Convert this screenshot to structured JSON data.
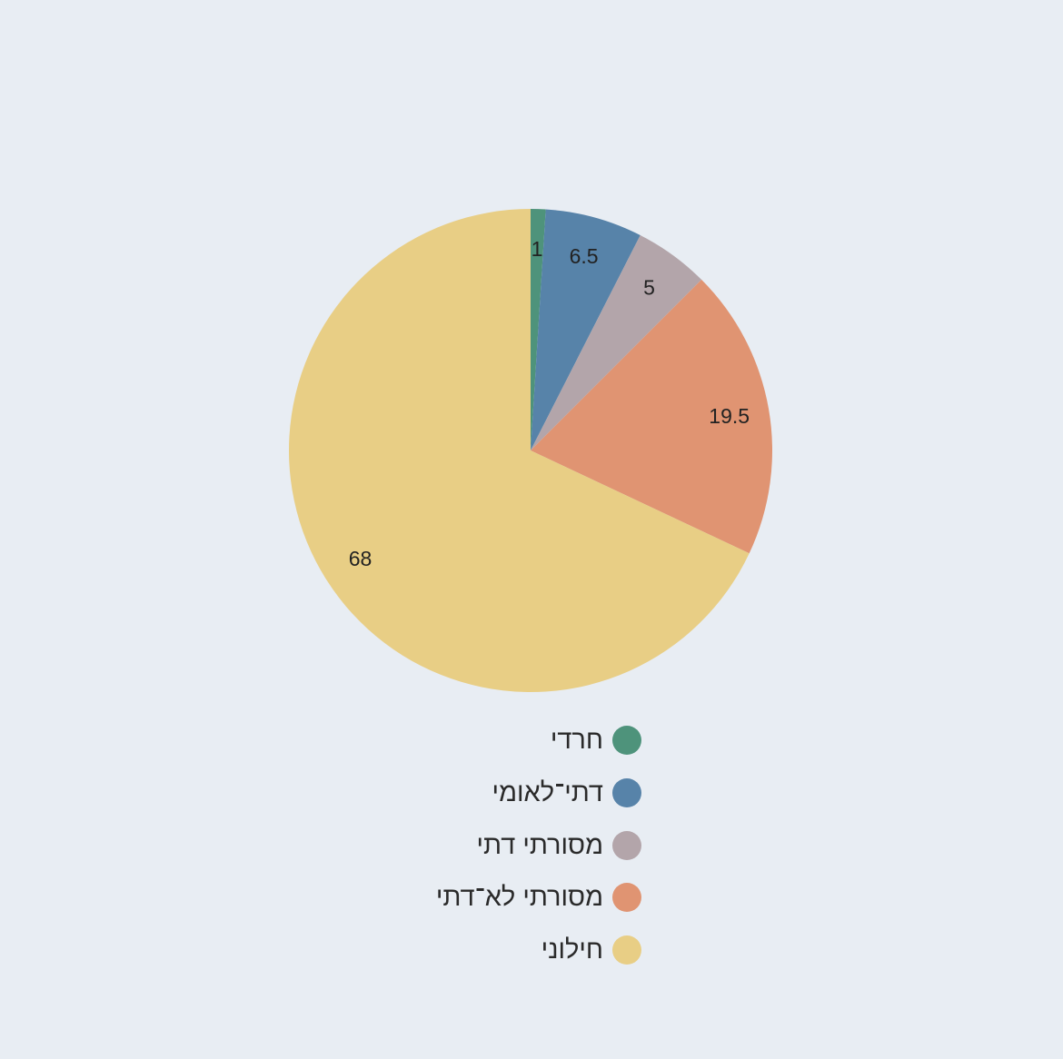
{
  "chart_data": {
    "type": "pie",
    "start_angle": "12 o'clock",
    "direction": "clockwise",
    "legend_position": "bottom-center",
    "slices": [
      {
        "label": "חרדי",
        "value": 1,
        "value_label": "1",
        "color": "#4e937b"
      },
      {
        "label": "דתי־לאומי",
        "value": 6.5,
        "value_label": "6.5",
        "color": "#5783a9"
      },
      {
        "label": "מסורתי דתי",
        "value": 5,
        "value_label": "5",
        "color": "#b3a5aa"
      },
      {
        "label": "מסורתי לא־דתי",
        "value": 19.5,
        "value_label": "19.5",
        "color": "#e09472"
      },
      {
        "label": "חילוני",
        "value": 68,
        "value_label": "68",
        "color": "#e8ce85"
      }
    ]
  }
}
